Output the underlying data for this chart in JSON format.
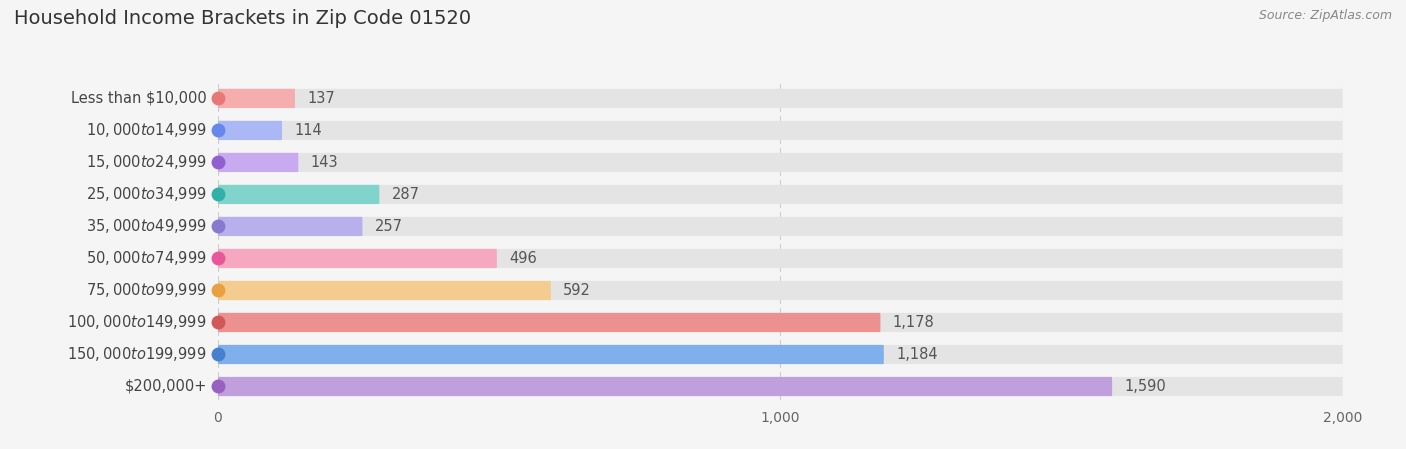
{
  "title": "Household Income Brackets in Zip Code 01520",
  "source": "Source: ZipAtlas.com",
  "categories": [
    "Less than $10,000",
    "$10,000 to $14,999",
    "$15,000 to $24,999",
    "$25,000 to $34,999",
    "$35,000 to $49,999",
    "$50,000 to $74,999",
    "$75,000 to $99,999",
    "$100,000 to $149,999",
    "$150,000 to $199,999",
    "$200,000+"
  ],
  "values": [
    137,
    114,
    143,
    287,
    257,
    496,
    592,
    1178,
    1184,
    1590
  ],
  "bar_colors": [
    "#f5adad",
    "#aab8f5",
    "#c8aaf0",
    "#80d4cc",
    "#b8b0ec",
    "#f5a8c0",
    "#f5cc90",
    "#ec9090",
    "#80b0ec",
    "#c0a0dc"
  ],
  "dot_colors": [
    "#e87878",
    "#6688e8",
    "#9060d0",
    "#30b0a8",
    "#8878d0",
    "#e85898",
    "#e8a040",
    "#d05858",
    "#4880d0",
    "#9860c0"
  ],
  "background_color": "#f5f5f5",
  "bar_background_color": "#e4e4e4",
  "xlim": [
    0,
    2000
  ],
  "xticks": [
    0,
    1000,
    2000
  ],
  "title_fontsize": 14,
  "label_fontsize": 10.5,
  "value_fontsize": 10.5
}
